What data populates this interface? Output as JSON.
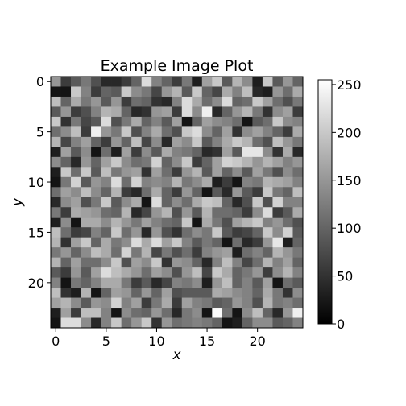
{
  "chart_data": {
    "type": "heatmap",
    "title": "Example Image Plot",
    "xlabel": "x",
    "ylabel": "y",
    "colormap": "gray",
    "nrows": 25,
    "ncols": 25,
    "x_ticks": [
      0,
      5,
      10,
      15,
      20
    ],
    "y_ticks": [
      0,
      5,
      10,
      15,
      20
    ],
    "color_range": [
      0,
      255
    ],
    "colorbar_ticks": [
      0,
      50,
      100,
      150,
      200,
      250
    ],
    "values": [
      [
        150,
        60,
        90,
        120,
        80,
        40,
        40,
        60,
        100,
        220,
        130,
        100,
        60,
        120,
        30,
        160,
        200,
        90,
        180,
        140,
        30,
        200,
        90,
        150,
        100
      ],
      [
        20,
        20,
        200,
        130,
        60,
        100,
        90,
        200,
        140,
        120,
        70,
        150,
        180,
        90,
        200,
        100,
        70,
        170,
        130,
        190,
        40,
        30,
        150,
        110,
        170
      ],
      [
        190,
        100,
        170,
        120,
        150,
        90,
        150,
        60,
        110,
        100,
        50,
        40,
        130,
        220,
        170,
        110,
        140,
        220,
        100,
        110,
        200,
        160,
        110,
        80,
        120
      ],
      [
        90,
        150,
        60,
        80,
        130,
        180,
        170,
        100,
        40,
        50,
        150,
        160,
        60,
        220,
        140,
        240,
        40,
        100,
        150,
        180,
        120,
        50,
        140,
        160,
        60
      ],
      [
        200,
        50,
        120,
        70,
        90,
        220,
        80,
        120,
        170,
        100,
        130,
        90,
        160,
        20,
        100,
        160,
        140,
        130,
        110,
        20,
        90,
        110,
        200,
        140,
        130
      ],
      [
        110,
        140,
        190,
        60,
        240,
        150,
        120,
        200,
        80,
        130,
        170,
        110,
        80,
        200,
        220,
        140,
        100,
        160,
        50,
        140,
        160,
        130,
        100,
        60,
        170
      ],
      [
        180,
        70,
        130,
        160,
        100,
        60,
        150,
        100,
        190,
        70,
        140,
        40,
        160,
        140,
        200,
        90,
        130,
        170,
        200,
        180,
        110,
        80,
        190,
        150,
        120
      ],
      [
        30,
        160,
        90,
        140,
        20,
        110,
        30,
        160,
        60,
        140,
        90,
        170,
        130,
        120,
        100,
        40,
        50,
        160,
        90,
        230,
        230,
        140,
        50,
        170,
        40
      ],
      [
        140,
        100,
        40,
        150,
        100,
        160,
        200,
        140,
        110,
        120,
        210,
        100,
        140,
        200,
        60,
        100,
        160,
        210,
        200,
        180,
        150,
        180,
        160,
        130,
        150
      ],
      [
        30,
        200,
        110,
        200,
        90,
        190,
        120,
        150,
        160,
        50,
        160,
        110,
        60,
        150,
        180,
        90,
        160,
        100,
        140,
        90,
        160,
        120,
        80,
        140,
        110
      ],
      [
        20,
        120,
        210,
        90,
        150,
        130,
        220,
        110,
        210,
        130,
        140,
        130,
        180,
        120,
        140,
        170,
        30,
        60,
        20,
        130,
        120,
        180,
        170,
        160,
        130
      ],
      [
        110,
        160,
        140,
        190,
        140,
        100,
        180,
        60,
        40,
        110,
        170,
        100,
        60,
        150,
        100,
        20,
        90,
        40,
        150,
        90,
        60,
        200,
        120,
        100,
        190
      ],
      [
        40,
        140,
        160,
        80,
        120,
        200,
        90,
        140,
        170,
        20,
        220,
        100,
        140,
        110,
        170,
        200,
        190,
        100,
        40,
        80,
        200,
        80,
        210,
        130,
        130
      ],
      [
        120,
        60,
        170,
        160,
        150,
        110,
        100,
        180,
        40,
        70,
        150,
        180,
        80,
        150,
        90,
        180,
        110,
        110,
        100,
        60,
        140,
        220,
        60,
        90,
        170
      ],
      [
        30,
        140,
        20,
        170,
        170,
        140,
        180,
        150,
        120,
        160,
        130,
        110,
        100,
        200,
        20,
        170,
        120,
        80,
        160,
        180,
        200,
        130,
        150,
        110,
        80
      ],
      [
        190,
        110,
        60,
        70,
        130,
        100,
        200,
        110,
        150,
        40,
        150,
        80,
        50,
        110,
        140,
        120,
        200,
        90,
        60,
        70,
        100,
        200,
        140,
        210,
        90
      ],
      [
        180,
        50,
        160,
        200,
        100,
        170,
        120,
        140,
        220,
        170,
        220,
        160,
        200,
        130,
        90,
        120,
        100,
        20,
        110,
        40,
        60,
        150,
        230,
        30,
        100
      ],
      [
        120,
        150,
        100,
        140,
        190,
        170,
        110,
        210,
        120,
        180,
        70,
        120,
        80,
        110,
        60,
        130,
        150,
        160,
        30,
        110,
        130,
        100,
        180,
        150,
        120
      ],
      [
        180,
        100,
        160,
        110,
        110,
        140,
        200,
        80,
        160,
        140,
        200,
        50,
        150,
        140,
        100,
        40,
        130,
        190,
        130,
        70,
        110,
        180,
        130,
        160,
        100
      ],
      [
        90,
        60,
        150,
        90,
        160,
        220,
        190,
        170,
        150,
        110,
        160,
        140,
        80,
        150,
        190,
        70,
        200,
        170,
        100,
        120,
        150,
        60,
        140,
        180,
        130
      ],
      [
        130,
        20,
        120,
        100,
        130,
        170,
        170,
        120,
        60,
        90,
        40,
        70,
        130,
        120,
        140,
        30,
        150,
        190,
        100,
        130,
        90,
        160,
        20,
        110,
        90
      ],
      [
        190,
        50,
        30,
        180,
        20,
        100,
        160,
        150,
        100,
        150,
        100,
        160,
        80,
        90,
        90,
        90,
        170,
        160,
        140,
        130,
        100,
        170,
        120,
        50,
        140
      ],
      [
        160,
        180,
        140,
        90,
        150,
        140,
        210,
        130,
        160,
        60,
        120,
        170,
        60,
        160,
        130,
        120,
        90,
        100,
        150,
        130,
        80,
        180,
        120,
        130,
        110
      ],
      [
        30,
        160,
        60,
        190,
        190,
        130,
        20,
        140,
        110,
        100,
        150,
        110,
        40,
        120,
        140,
        20,
        250,
        110,
        20,
        140,
        190,
        100,
        40,
        150,
        240
      ],
      [
        20,
        220,
        220,
        140,
        40,
        130,
        200,
        110,
        150,
        200,
        50,
        150,
        110,
        120,
        130,
        120,
        100,
        20,
        30,
        100,
        140,
        140,
        90,
        100,
        130
      ]
    ]
  }
}
